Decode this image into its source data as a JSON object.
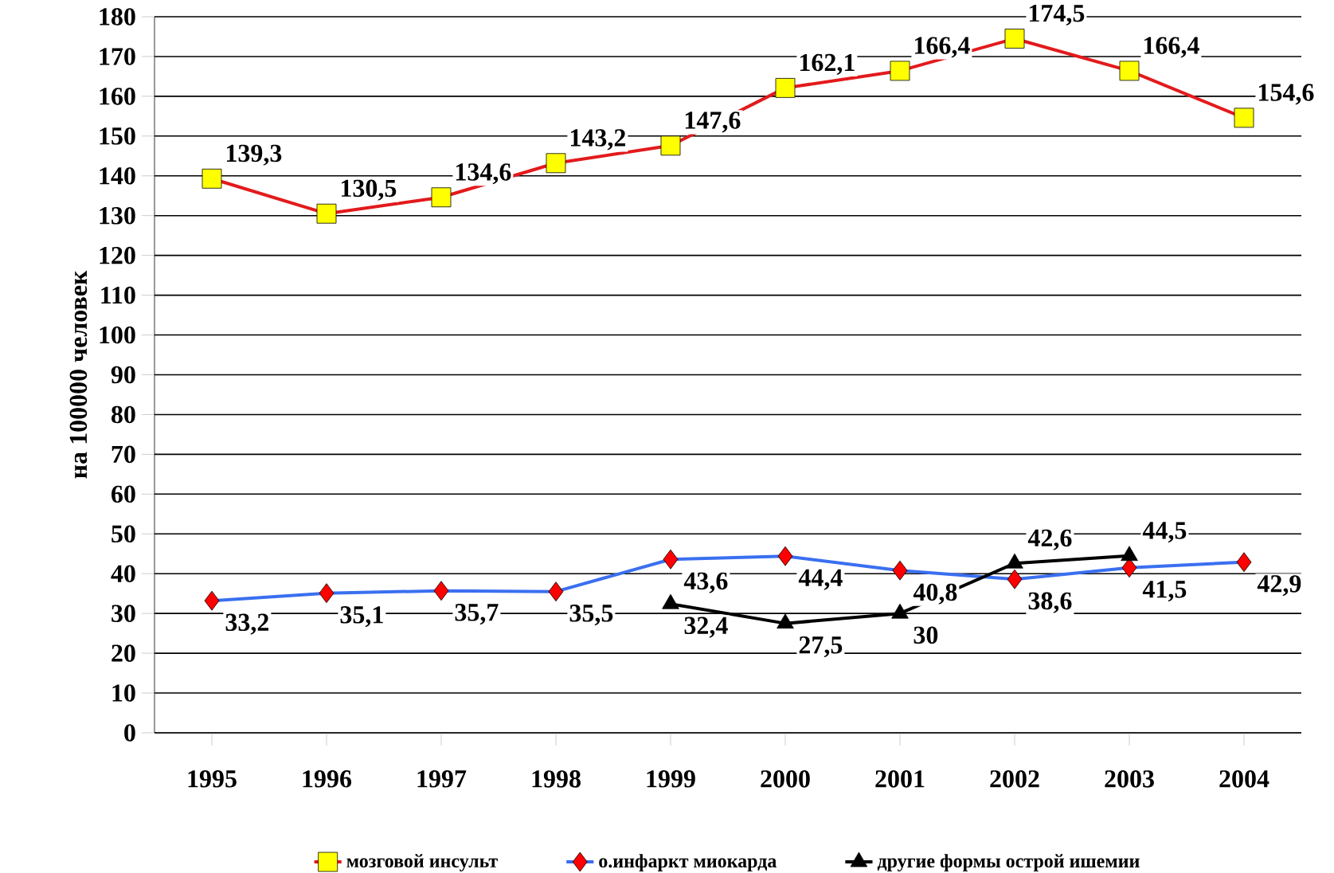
{
  "chart_data": {
    "type": "line",
    "ylabel": "на 100000 человек",
    "categories": [
      "1995",
      "1996",
      "1997",
      "1998",
      "1999",
      "2000",
      "2001",
      "2002",
      "2003",
      "2004"
    ],
    "ylim": [
      0,
      180
    ],
    "yticks": [
      0,
      10,
      20,
      30,
      40,
      50,
      60,
      70,
      80,
      90,
      100,
      110,
      120,
      130,
      140,
      150,
      160,
      170,
      180
    ],
    "grid": "y",
    "legend": "bottom",
    "series": [
      {
        "name": "мозговой инсульт",
        "color": "#e31a1c",
        "marker": "square",
        "values": [
          139.3,
          130.5,
          134.6,
          143.2,
          147.6,
          162.1,
          166.4,
          174.5,
          166.4,
          154.6
        ],
        "value_labels": [
          "139,3",
          "130,5",
          "134,6",
          "143,2",
          "147,6",
          "162,1",
          "166,4",
          "174,5",
          "166,4",
          "154,6"
        ]
      },
      {
        "name": "о.инфаркт миокарда",
        "color": "#3a6ff0",
        "marker": "diamond",
        "values": [
          33.2,
          35.1,
          35.7,
          35.5,
          43.6,
          44.4,
          40.8,
          38.6,
          41.5,
          42.9
        ],
        "value_labels": [
          "33,2",
          "35,1",
          "35,7",
          "35,5",
          "43,6",
          "44,4",
          "40,8",
          "38,6",
          "41,5",
          "42,9"
        ]
      },
      {
        "name": "другие формы острой ишемии",
        "color": "#000000",
        "marker": "triangle",
        "values": [
          null,
          null,
          null,
          null,
          32.4,
          27.5,
          30,
          42.6,
          44.5,
          null
        ],
        "value_labels": [
          null,
          null,
          null,
          null,
          "32,4",
          "27,5",
          "30",
          "42,6",
          "44,5",
          null
        ]
      }
    ]
  }
}
